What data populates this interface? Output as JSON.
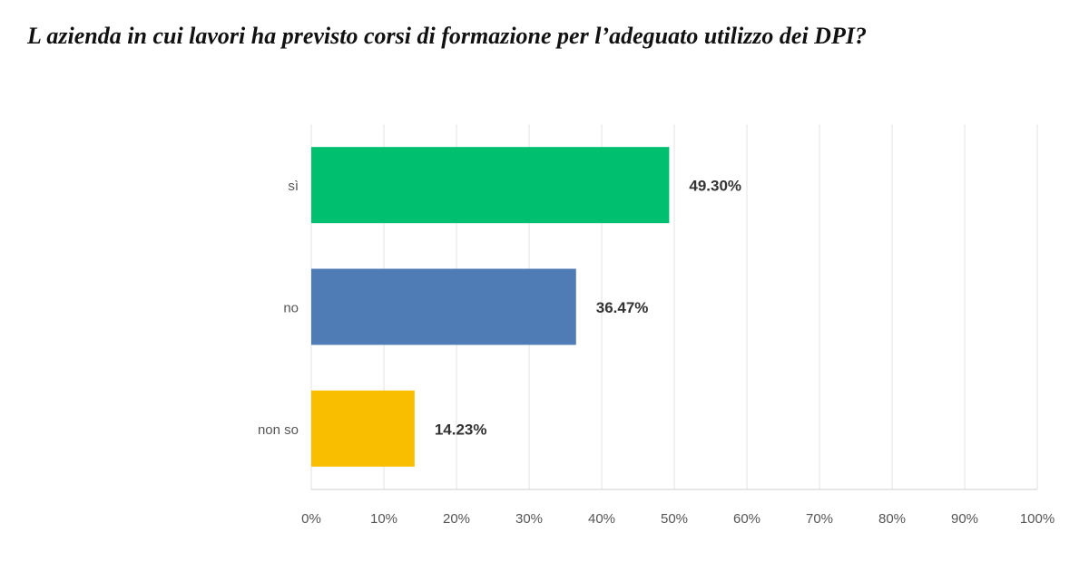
{
  "chart_data": {
    "type": "hbar",
    "title": "L azienda in cui lavori ha previsto corsi di formazione per l’adeguato utilizzo dei DPI?",
    "categories": [
      "sì",
      "no",
      "non so"
    ],
    "series": [
      {
        "values": [
          49.3,
          36.47,
          14.23
        ],
        "value_labels": [
          "49.30%",
          "36.47%",
          "14.23%"
        ],
        "colors": [
          "#00bf6f",
          "#507cb6",
          "#f9be00"
        ]
      }
    ],
    "xlim": [
      0,
      100
    ],
    "xticks": [
      {
        "value": 0,
        "label": "0%"
      },
      {
        "value": 10,
        "label": "10%"
      },
      {
        "value": 20,
        "label": "20%"
      },
      {
        "value": 30,
        "label": "30%"
      },
      {
        "value": 40,
        "label": "40%"
      },
      {
        "value": 50,
        "label": "50%"
      },
      {
        "value": 60,
        "label": "60%"
      },
      {
        "value": 70,
        "label": "70%"
      },
      {
        "value": 80,
        "label": "80%"
      },
      {
        "value": 90,
        "label": "90%"
      },
      {
        "value": 100,
        "label": "100%"
      }
    ],
    "grid": true
  }
}
